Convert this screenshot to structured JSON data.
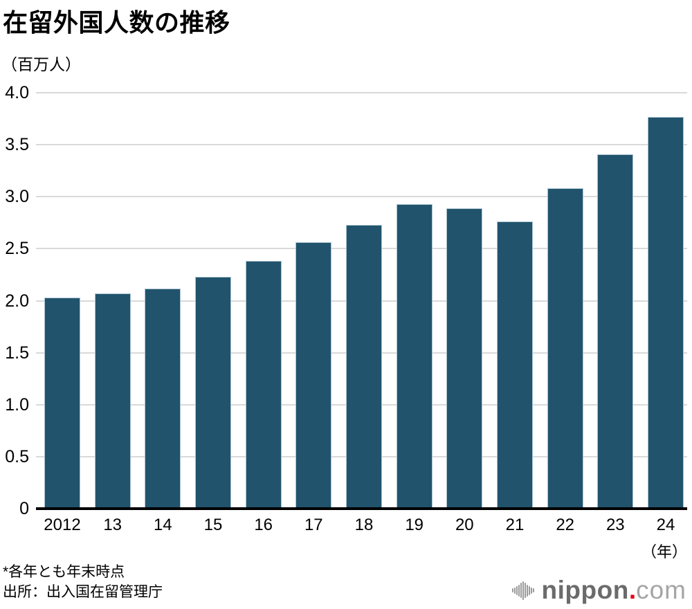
{
  "title": "在留外国人数の推移",
  "unit_label": "（百万人）",
  "x_unit_label": "（年）",
  "footnote": "*各年とも年末時点",
  "source": "出所：出入国在留管理庁",
  "colors": {
    "bar_fill": "#21536C",
    "bar_edge": "#a9c3d1",
    "grid": "#d9d9d9",
    "axis": "#000000",
    "logo_gray_dark": "#6b6b6b",
    "logo_gray_light": "#a5a5a5",
    "logo_red": "#e60012"
  },
  "chart_data": {
    "type": "bar",
    "title": "在留外国人数の推移",
    "ylabel": "（百万人）",
    "xlabel": "（年）",
    "categories": [
      "2012",
      "13",
      "14",
      "15",
      "16",
      "17",
      "18",
      "19",
      "20",
      "21",
      "22",
      "23",
      "24"
    ],
    "values": [
      2.03,
      2.07,
      2.12,
      2.23,
      2.38,
      2.56,
      2.73,
      2.93,
      2.89,
      2.76,
      3.08,
      3.41,
      3.77
    ],
    "ylim": [
      0,
      4.0
    ],
    "yticks": [
      0,
      0.5,
      1.0,
      1.5,
      2.0,
      2.5,
      3.0,
      3.5,
      4.0
    ],
    "ytick_labels": [
      "0",
      "0.5",
      "1.0",
      "1.5",
      "2.0",
      "2.5",
      "3.0",
      "3.5",
      "4.0"
    ],
    "grid": true,
    "legend": false
  },
  "logo": {
    "name": "nippon",
    "dot": ".",
    "tld": "com",
    "icon": "soundwave-icon",
    "wave_heights": [
      6,
      9,
      13,
      17,
      22,
      27,
      22,
      17,
      13,
      9,
      6
    ]
  }
}
